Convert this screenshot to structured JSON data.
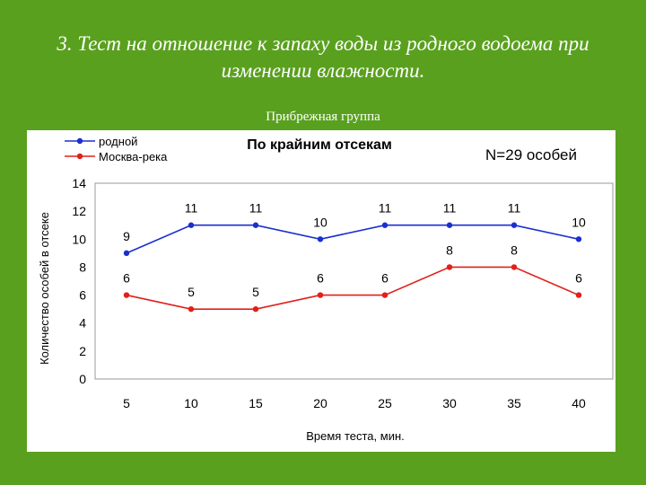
{
  "slide": {
    "title_line1": "3. Тест на отношение к запаху воды из родного водоема при",
    "title_line2": "изменении влажности.",
    "subtitle": "Прибрежная группа"
  },
  "chart_data": {
    "type": "line",
    "title": "По крайним отсекам",
    "annotation": "N=29 особей",
    "xlabel": "Время теста, мин.",
    "ylabel": "Количество особей в отсеке",
    "categories": [
      "5",
      "10",
      "15",
      "20",
      "25",
      "30",
      "35",
      "40"
    ],
    "ylim": [
      0,
      14
    ],
    "yticks": [
      0,
      2,
      4,
      6,
      8,
      10,
      12,
      14
    ],
    "grid": false,
    "legend_position": "top-left",
    "series": [
      {
        "name": "родной",
        "color": "#1a2fd0",
        "values": [
          9,
          11,
          11,
          10,
          11,
          11,
          11,
          10
        ]
      },
      {
        "name": "Москва-река",
        "color": "#e0201a",
        "values": [
          6,
          5,
          5,
          6,
          6,
          8,
          8,
          6
        ]
      }
    ]
  }
}
